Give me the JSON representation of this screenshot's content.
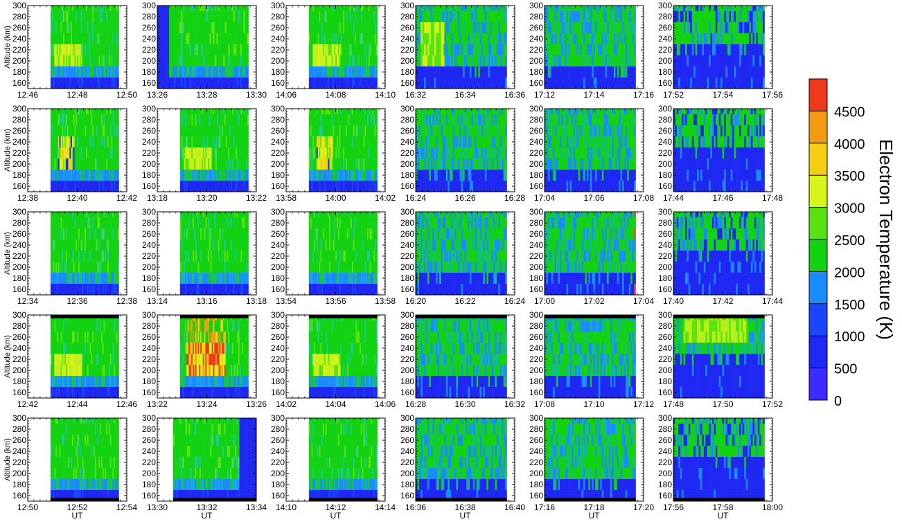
{
  "chart_data": {
    "type": "heatmap",
    "ylabel": "Altitude (km)",
    "xlabel": "UT",
    "ylim": [
      150,
      300
    ],
    "yticks": [
      160,
      180,
      200,
      220,
      240,
      260,
      280,
      300
    ],
    "altitudes": [
      160,
      180,
      200,
      220,
      240,
      260,
      280,
      300
    ],
    "colorbar": {
      "label": "Electron Temperature (K)",
      "range": [
        0,
        5000
      ],
      "ticks": [
        "0",
        "500",
        "1000",
        "1500",
        "2000",
        "2500",
        "3000",
        "3500",
        "4000",
        "4500"
      ],
      "colors": [
        "#3a2bff",
        "#1e28f2",
        "#1a46ff",
        "#1a8cff",
        "#12d212",
        "#5ae312",
        "#d6f51a",
        "#f7cf12",
        "#f59a12",
        "#f2651a",
        "#ee3a1a"
      ]
    },
    "panels": [
      {
        "row": 0,
        "col": 0,
        "ticks": [
          "12:46",
          "12:48",
          "12:50"
        ],
        "scene": "hot-low"
      },
      {
        "row": 0,
        "col": 1,
        "ticks": [
          "13:26",
          "13:28",
          "13:30"
        ],
        "scene": "blue-left"
      },
      {
        "row": 0,
        "col": 2,
        "ticks": [
          "14:06",
          "14:08",
          "14:10"
        ],
        "scene": "hot-low"
      },
      {
        "row": 0,
        "col": 3,
        "ticks": [
          "16:32",
          "16:34",
          "16:36"
        ],
        "scene": "warm-edge"
      },
      {
        "row": 0,
        "col": 4,
        "ticks": [
          "17:12",
          "17:14",
          "17:16"
        ],
        "scene": "evening"
      },
      {
        "row": 0,
        "col": 5,
        "ticks": [
          "17:52",
          "17:54",
          "17:56"
        ],
        "scene": "late"
      },
      {
        "row": 1,
        "col": 0,
        "ticks": [
          "12:38",
          "12:40",
          "12:42"
        ],
        "scene": "hot-spot"
      },
      {
        "row": 1,
        "col": 1,
        "ticks": [
          "13:18",
          "13:20",
          "13:22"
        ],
        "scene": "hot-low"
      },
      {
        "row": 1,
        "col": 2,
        "ticks": [
          "13:58",
          "14:00",
          "14:02"
        ],
        "scene": "hot-spot"
      },
      {
        "row": 1,
        "col": 3,
        "ticks": [
          "16:24",
          "16:26",
          "16:28"
        ],
        "scene": "evening"
      },
      {
        "row": 1,
        "col": 4,
        "ticks": [
          "17:04",
          "17:06",
          "17:08"
        ],
        "scene": "evening"
      },
      {
        "row": 1,
        "col": 5,
        "ticks": [
          "17:44",
          "17:46",
          "17:48"
        ],
        "scene": "late"
      },
      {
        "row": 2,
        "col": 0,
        "ticks": [
          "12:34",
          "12:36",
          "12:38"
        ],
        "scene": "plain"
      },
      {
        "row": 2,
        "col": 1,
        "ticks": [
          "13:14",
          "13:16",
          "13:18"
        ],
        "scene": "plain"
      },
      {
        "row": 2,
        "col": 2,
        "ticks": [
          "13:54",
          "13:56",
          "13:58"
        ],
        "scene": "plain"
      },
      {
        "row": 2,
        "col": 3,
        "ticks": [
          "16:20",
          "16:22",
          "16:24"
        ],
        "scene": "evening"
      },
      {
        "row": 2,
        "col": 4,
        "ticks": [
          "17:00",
          "17:02",
          "17:04"
        ],
        "scene": "red-edge"
      },
      {
        "row": 2,
        "col": 5,
        "ticks": [
          "17:40",
          "17:42",
          "17:44"
        ],
        "scene": "late"
      },
      {
        "row": 3,
        "col": 0,
        "ticks": [
          "12:42",
          "12:44",
          "12:46"
        ],
        "scene": "hot-low",
        "topbar": true
      },
      {
        "row": 3,
        "col": 1,
        "ticks": [
          "13:22",
          "13:24",
          "13:26"
        ],
        "scene": "very-hot",
        "topbar": true
      },
      {
        "row": 3,
        "col": 2,
        "ticks": [
          "14:02",
          "14:04",
          "14:06"
        ],
        "scene": "hot-low",
        "topbar": true
      },
      {
        "row": 3,
        "col": 3,
        "ticks": [
          "16:28",
          "16:30",
          "16:32"
        ],
        "scene": "evening",
        "topbar": true
      },
      {
        "row": 3,
        "col": 4,
        "ticks": [
          "17:08",
          "17:10",
          "17:12"
        ],
        "scene": "evening",
        "topbar": true
      },
      {
        "row": 3,
        "col": 5,
        "ticks": [
          "17:48",
          "17:50",
          "17:52"
        ],
        "scene": "late-warm",
        "topbar": true
      },
      {
        "row": 4,
        "col": 0,
        "ticks": [
          "12:50",
          "12:52",
          "12:54"
        ],
        "scene": "plain",
        "bottombar": true
      },
      {
        "row": 4,
        "col": 1,
        "ticks": [
          "13:30",
          "13:32",
          "13:34"
        ],
        "scene": "blue-right",
        "bottombar": true
      },
      {
        "row": 4,
        "col": 2,
        "ticks": [
          "14:10",
          "14:12",
          "14:14"
        ],
        "scene": "plain",
        "bottombar": true
      },
      {
        "row": 4,
        "col": 3,
        "ticks": [
          "16:36",
          "16:38",
          "16:40"
        ],
        "scene": "evening",
        "bottombar": true
      },
      {
        "row": 4,
        "col": 4,
        "ticks": [
          "17:16",
          "17:18",
          "17:20"
        ],
        "scene": "evening",
        "bottombar": true
      },
      {
        "row": 4,
        "col": 5,
        "ticks": [
          "17:56",
          "17:58",
          "18:00"
        ],
        "scene": "late",
        "bottombar": true
      }
    ]
  }
}
